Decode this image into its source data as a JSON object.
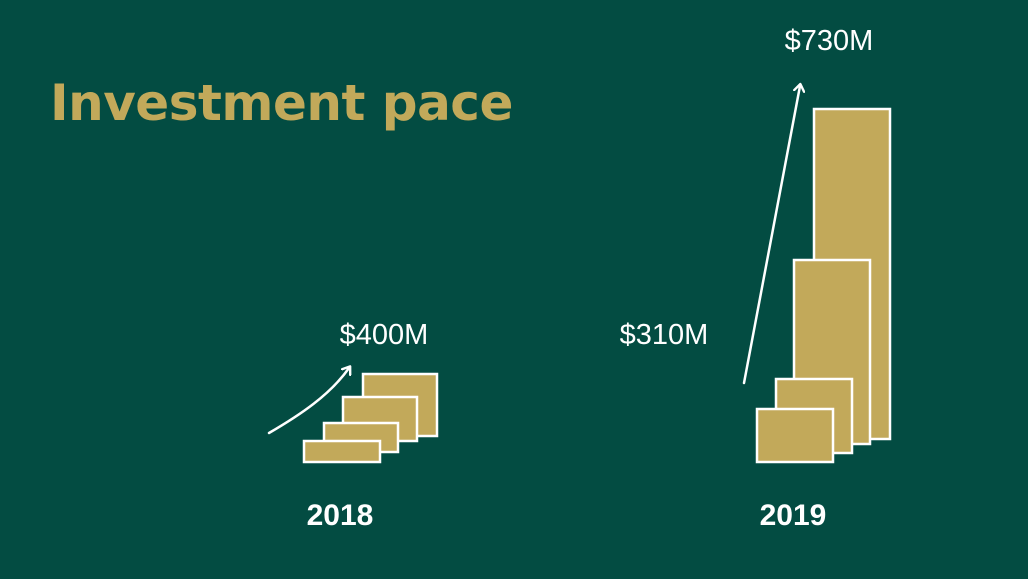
{
  "title": "Investment pace",
  "colors": {
    "background": "#034c42",
    "bar_fill": "#c2a95a",
    "bar_stroke": "#ffffff",
    "title": "#c2a95a",
    "text": "#ffffff"
  },
  "chart_data": {
    "type": "bar",
    "title": "Investment pace",
    "groups": [
      {
        "year": "2018",
        "label": "$400M",
        "bar_count": 4
      },
      {
        "year": "2019",
        "label_start": "$310M",
        "label_end": "$730M",
        "start_value": 310,
        "end_value": 730,
        "bar_count": 4
      }
    ]
  }
}
